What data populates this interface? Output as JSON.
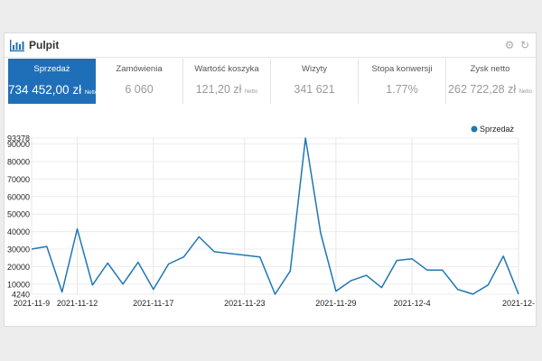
{
  "panel": {
    "title": "Pulpit",
    "icon": "bar-chart-icon",
    "tools": [
      "gear-icon",
      "refresh-icon"
    ]
  },
  "kpis": [
    {
      "id": "sprzedaz",
      "label": "Sprzedaż",
      "value": "734 452,00 zł",
      "suffix": "Netto",
      "active": true
    },
    {
      "id": "zamowienia",
      "label": "Zamówienia",
      "value": "6 060",
      "suffix": ""
    },
    {
      "id": "wartosc",
      "label": "Wartość koszyka",
      "value": "121,20 zł",
      "suffix": "Netto"
    },
    {
      "id": "wizyty",
      "label": "Wizyty",
      "value": "341 621",
      "suffix": ""
    },
    {
      "id": "konwersja",
      "label": "Stopa konwersji",
      "value": "1.77%",
      "suffix": ""
    },
    {
      "id": "zysk",
      "label": "Zysk netto",
      "value": "262 722,28 zł",
      "suffix": "Netto"
    }
  ],
  "colors": {
    "accent": "#1f6fb8",
    "line": "#1f77b4"
  },
  "chart_data": {
    "type": "line",
    "legend": "top-right",
    "grid": true,
    "series": [
      {
        "name": "Sprzedaż",
        "values": [
          30000,
          31500,
          5500,
          41500,
          9500,
          22000,
          10000,
          22500,
          7000,
          21500,
          25500,
          37000,
          28500,
          27500,
          26500,
          25500,
          4240,
          17500,
          93378,
          39000,
          6000,
          12000,
          15000,
          8000,
          23500,
          24500,
          18000,
          18000,
          7000,
          4300,
          9500,
          26000,
          4240
        ]
      }
    ],
    "x_ticks": [
      {
        "index": 0,
        "label": "2021-11-9"
      },
      {
        "index": 3,
        "label": "2021-11-12"
      },
      {
        "index": 8,
        "label": "2021-11-17"
      },
      {
        "index": 14,
        "label": "2021-11-23"
      },
      {
        "index": 20,
        "label": "2021-11-29"
      },
      {
        "index": 25,
        "label": "2021-12-4"
      },
      {
        "index": 32,
        "label": "2021-12-"
      }
    ],
    "y_ticks": [
      4240,
      10000,
      20000,
      30000,
      40000,
      50000,
      60000,
      70000,
      80000,
      90000,
      93378
    ],
    "ylim": [
      4240,
      93378
    ]
  }
}
